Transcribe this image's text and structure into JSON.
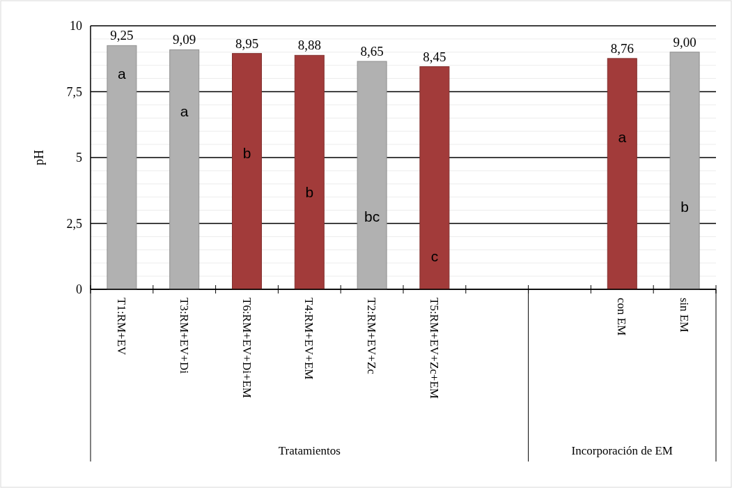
{
  "chart_data": {
    "type": "bar",
    "ylabel": "pH",
    "categories": [
      "T1:RM+EV",
      "T3:RM+EV+Di",
      "T6:RM+EV+Di+EM",
      "T4:RM+EV+EM",
      "T2:RM+EV+Zc",
      "T5:RM+EV+Zc+EM",
      null,
      null,
      "con EM",
      "sin EM"
    ],
    "values": [
      9.25,
      9.09,
      8.95,
      8.88,
      8.65,
      8.45,
      null,
      null,
      8.76,
      9.0
    ],
    "value_labels": [
      "9,25",
      "9,09",
      "8,95",
      "8,88",
      "8,65",
      "8,45",
      null,
      null,
      "8,76",
      "9,00"
    ],
    "colors": [
      "#b1b1b1",
      "#b1b1b1",
      "#a23b3a",
      "#a23b3a",
      "#b1b1b1",
      "#a23b3a",
      null,
      null,
      "#a23b3a",
      "#b1b1b1"
    ],
    "ylim": [
      0,
      10
    ],
    "yticks": [
      0,
      {
        "value": 0.5,
        "label": null
      },
      {
        "value": 1,
        "label": null
      },
      {
        "value": 1.5,
        "label": null
      },
      {
        "value": 2,
        "label": null
      },
      {
        "value": 2.5,
        "label": "2,5"
      },
      {
        "value": 3,
        "label": null
      },
      {
        "value": 3.5,
        "label": null
      },
      {
        "value": 4,
        "label": null
      },
      {
        "value": 4.5,
        "label": null
      },
      5,
      {
        "value": 5.5,
        "label": null
      },
      {
        "value": 6,
        "label": null
      },
      {
        "value": 6.5,
        "label": null
      },
      {
        "value": 7,
        "label": null
      },
      {
        "value": 7.5,
        "label": "7,5"
      },
      {
        "value": 8,
        "label": null
      },
      {
        "value": 8.5,
        "label": null
      },
      {
        "value": 9,
        "label": null
      },
      {
        "value": 9.5,
        "label": null
      },
      10
    ],
    "grid": "y",
    "annotations": [
      "a",
      "a",
      "b",
      "b",
      "bc",
      "c",
      "a",
      "b",
      "Tratamientos",
      "Incorporación de EM"
    ]
  }
}
